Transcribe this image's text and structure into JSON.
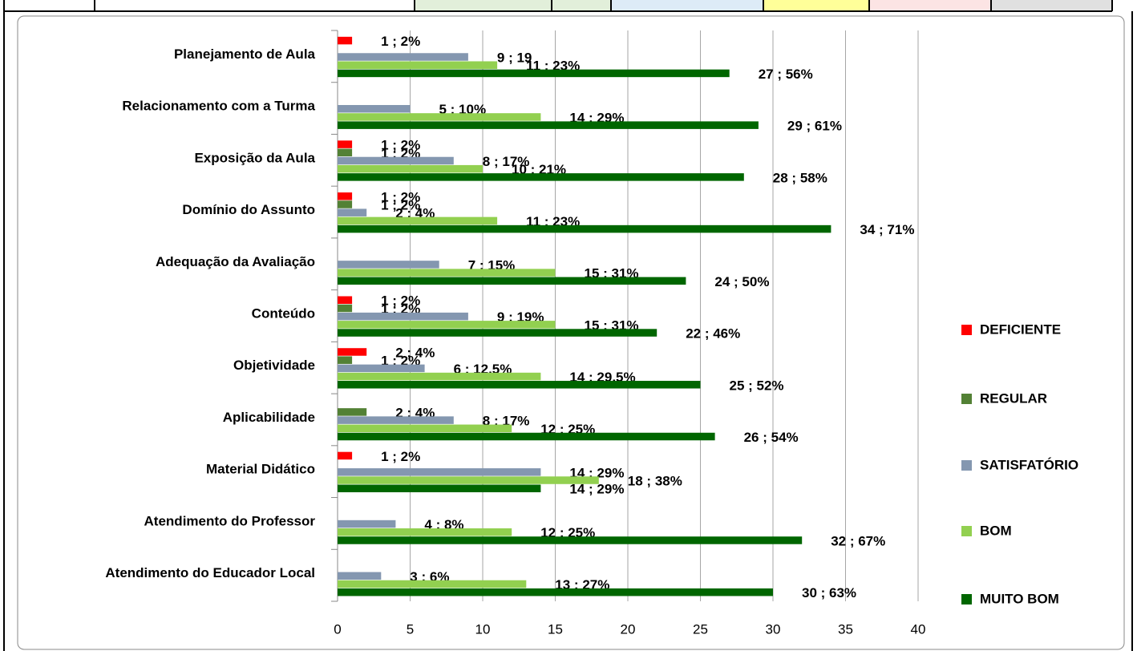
{
  "chart_data": {
    "type": "barh",
    "categories": [
      "Planejamento de Aula",
      "Relacionamento com a Turma",
      "Exposição da Aula",
      "Domínio do Assunto",
      "Adequação da Avaliação",
      "Conteúdo",
      "Objetividade",
      "Aplicabilidade",
      "Material Didático",
      "Atendimento do Professor",
      "Atendimento do Educador Local"
    ],
    "series": [
      {
        "name": "DEFICIENTE",
        "color": "#ff0000",
        "values": [
          1,
          null,
          1,
          1,
          null,
          1,
          2,
          null,
          1,
          null,
          null
        ],
        "value_labels": [
          "1 ; 2%",
          null,
          "1 ; 2%",
          "1 ; 2%",
          null,
          "1 ; 2%",
          "2 ; 4%",
          null,
          "1 ; 2%",
          null,
          null
        ]
      },
      {
        "name": "REGULAR",
        "color": "#538135",
        "values": [
          null,
          null,
          1,
          1,
          null,
          1,
          1,
          2,
          null,
          null,
          null
        ],
        "value_labels": [
          null,
          null,
          "1 ; 2%",
          "1 ; 2%",
          null,
          "1 ; 2%",
          "1 ; 2%",
          "2 ; 4%",
          null,
          null,
          null
        ]
      },
      {
        "name": "SATISFATÓRIO",
        "color": "#8497b0",
        "values": [
          9,
          5,
          8,
          2,
          7,
          9,
          6,
          8,
          14,
          4,
          3
        ],
        "value_labels": [
          "9 ; 19",
          "5 ; 10%",
          "8 ; 17%",
          "2 ; 4%",
          "7 ; 15%",
          "9 ; 19%",
          "6 ; 12,5%",
          "8 ; 17%",
          "14 ; 29%",
          "4 ; 8%",
          "3 ; 6%"
        ]
      },
      {
        "name": "BOM",
        "color": "#92d050",
        "values": [
          11,
          14,
          10,
          11,
          15,
          15,
          14,
          12,
          18,
          12,
          13
        ],
        "value_labels": [
          "11 ; 23%",
          "14 ; 29%",
          "10 ; 21%",
          "11 ; 23%",
          "15 ; 31%",
          "15 ; 31%",
          "14 ; 29,5%",
          "12 ; 25%",
          "18 ; 38%",
          "12 ; 25%",
          "13 ; 27%"
        ]
      },
      {
        "name": "MUITO BOM",
        "color": "#006600",
        "values": [
          27,
          29,
          28,
          34,
          24,
          22,
          25,
          26,
          14,
          32,
          30
        ],
        "value_labels": [
          "27 ; 56%",
          "29 ; 61%",
          "28 ; 58%",
          "34 ; 71%",
          "24 ; 50%",
          "22 ; 46%",
          "25 ; 52%",
          "26 ; 54%",
          "14 ; 29%",
          "32 ; 67%",
          "30 ;  63%"
        ]
      }
    ],
    "xlim": [
      0,
      40
    ],
    "xticks": [
      0,
      5,
      10,
      15,
      20,
      25,
      30,
      35,
      40
    ],
    "grid": true,
    "legend": "right"
  }
}
